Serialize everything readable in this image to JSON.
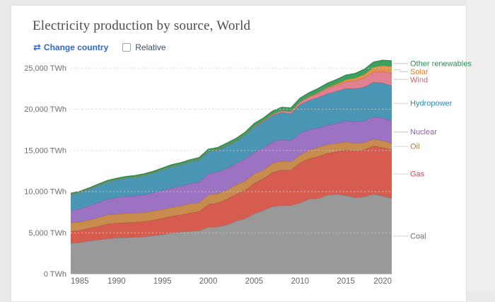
{
  "page": {
    "background_color": "#eceae9",
    "card_background": "#ffffff",
    "accent_blue": "#2d68cf"
  },
  "header": {
    "title": "Electricity production by source, World",
    "controls": {
      "change_country_icon": "⇄",
      "change_country_label": "Change country",
      "relative_label": "Relative"
    }
  },
  "chart_data": {
    "type": "area",
    "stacked": true,
    "unit": "TWh",
    "title": "Electricity production by source, World",
    "xlabel": "",
    "ylabel": "",
    "ylim": [
      0,
      25000
    ],
    "grid": "dashed-horizontal",
    "legend_position": "right",
    "x": [
      1985,
      1986,
      1987,
      1988,
      1989,
      1990,
      1991,
      1992,
      1993,
      1994,
      1995,
      1996,
      1997,
      1998,
      1999,
      2000,
      2001,
      2002,
      2003,
      2004,
      2005,
      2006,
      2007,
      2008,
      2009,
      2010,
      2011,
      2012,
      2013,
      2014,
      2015,
      2016,
      2017,
      2018,
      2019,
      2020
    ],
    "x_ticks": [
      {
        "v": 1985,
        "label": "1985"
      },
      {
        "v": 1990,
        "label": "1990"
      },
      {
        "v": 1995,
        "label": "1995"
      },
      {
        "v": 2000,
        "label": "2000"
      },
      {
        "v": 2005,
        "label": "2005"
      },
      {
        "v": 2010,
        "label": "2010"
      },
      {
        "v": 2015,
        "label": "2015"
      },
      {
        "v": 2020,
        "label": "2020"
      }
    ],
    "y_ticks": [
      {
        "v": 0,
        "label": "0 TWh"
      },
      {
        "v": 5000,
        "label": "5,000 TWh"
      },
      {
        "v": 10000,
        "label": "10,000 TWh"
      },
      {
        "v": 15000,
        "label": "15,000 TWh"
      },
      {
        "v": 20000,
        "label": "20,000 TWh"
      },
      {
        "v": 25000,
        "label": "25,000 TWh"
      }
    ],
    "series": [
      {
        "id": "coal",
        "label": "Coal",
        "color": "#999999",
        "text_color": "#6e6e6e",
        "values": [
          3748,
          3854,
          4014,
          4163,
          4289,
          4425,
          4434,
          4487,
          4529,
          4671,
          4806,
          4977,
          5104,
          5223,
          5270,
          5709,
          5743,
          5988,
          6448,
          6740,
          7342,
          7740,
          8220,
          8330,
          8320,
          8653,
          9140,
          9190,
          9600,
          9710,
          9538,
          9300,
          9400,
          9700,
          9500,
          9200
        ]
      },
      {
        "id": "gas",
        "label": "Gas",
        "color": "#d75c50",
        "text_color": "#c44a4e",
        "values": [
          1444,
          1441,
          1540,
          1628,
          1786,
          1748,
          1796,
          1810,
          1857,
          1899,
          1947,
          2033,
          2089,
          2193,
          2318,
          2752,
          2874,
          3091,
          3225,
          3417,
          3679,
          3830,
          4130,
          4300,
          4290,
          4858,
          4850,
          5100,
          5060,
          5160,
          5543,
          5650,
          5700,
          5850,
          5850,
          5900
        ]
      },
      {
        "id": "oil",
        "label": "Oil",
        "color": "#c98c4f",
        "text_color": "#bc7b36",
        "values": [
          1044,
          1034,
          1026,
          1069,
          1132,
          1125,
          1137,
          1140,
          1081,
          1113,
          1092,
          1087,
          1100,
          1133,
          1113,
          1180,
          1160,
          1130,
          1180,
          1170,
          1162,
          1100,
          1120,
          1100,
          1030,
          975,
          1060,
          1140,
          1080,
          1020,
          990,
          920,
          880,
          850,
          830,
          800
        ]
      },
      {
        "id": "nuclear",
        "label": "Nuclear",
        "color": "#9c72c2",
        "text_color": "#8a5fae",
        "values": [
          1489,
          1593,
          1735,
          1848,
          1905,
          1999,
          2074,
          2104,
          2172,
          2213,
          2321,
          2406,
          2390,
          2431,
          2523,
          2540,
          2637,
          2654,
          2610,
          2696,
          2646,
          2675,
          2608,
          2601,
          2568,
          2630,
          2518,
          2346,
          2359,
          2410,
          2571,
          2612,
          2639,
          2701,
          2796,
          2674
        ]
      },
      {
        "id": "hydropower",
        "label": "Hydropower",
        "color": "#4a96b5",
        "text_color": "#3a87ab",
        "values": [
          1954,
          1985,
          2002,
          2064,
          2088,
          2159,
          2226,
          2230,
          2341,
          2373,
          2497,
          2557,
          2614,
          2646,
          2673,
          2697,
          2640,
          2705,
          2645,
          2800,
          3019,
          3121,
          3162,
          3285,
          3252,
          3444,
          3514,
          3672,
          3800,
          3890,
          3884,
          4023,
          4065,
          4170,
          4222,
          4300
        ]
      },
      {
        "id": "wind",
        "label": "Wind",
        "color": "#e08090",
        "text_color": "#cc5f6f",
        "values": [
          0,
          0,
          0,
          1,
          2,
          4,
          4,
          5,
          6,
          7,
          8,
          9,
          12,
          16,
          21,
          31,
          38,
          52,
          63,
          85,
          104,
          133,
          171,
          221,
          276,
          346,
          437,
          524,
          646,
          713,
          831,
          957,
          1136,
          1269,
          1420,
          1520
        ]
      },
      {
        "id": "solar",
        "label": "Solar",
        "color": "#e6914a",
        "text_color": "#d6822f",
        "values": [
          0,
          0,
          0,
          0,
          0,
          0,
          0,
          0,
          0,
          0,
          1,
          1,
          1,
          1,
          1,
          1,
          1,
          2,
          2,
          3,
          4,
          5,
          7,
          12,
          20,
          32,
          63,
          97,
          132,
          197,
          256,
          328,
          445,
          574,
          704,
          820
        ]
      },
      {
        "id": "other_renewables",
        "label": "Other renewables",
        "color": "#3aa25e",
        "text_color": "#2d8f57",
        "values": [
          131,
          137,
          143,
          149,
          158,
          165,
          172,
          180,
          188,
          196,
          205,
          213,
          222,
          231,
          240,
          250,
          258,
          268,
          282,
          304,
          325,
          347,
          369,
          392,
          410,
          425,
          444,
          474,
          502,
          530,
          545,
          565,
          595,
          625,
          650,
          680
        ]
      }
    ]
  }
}
